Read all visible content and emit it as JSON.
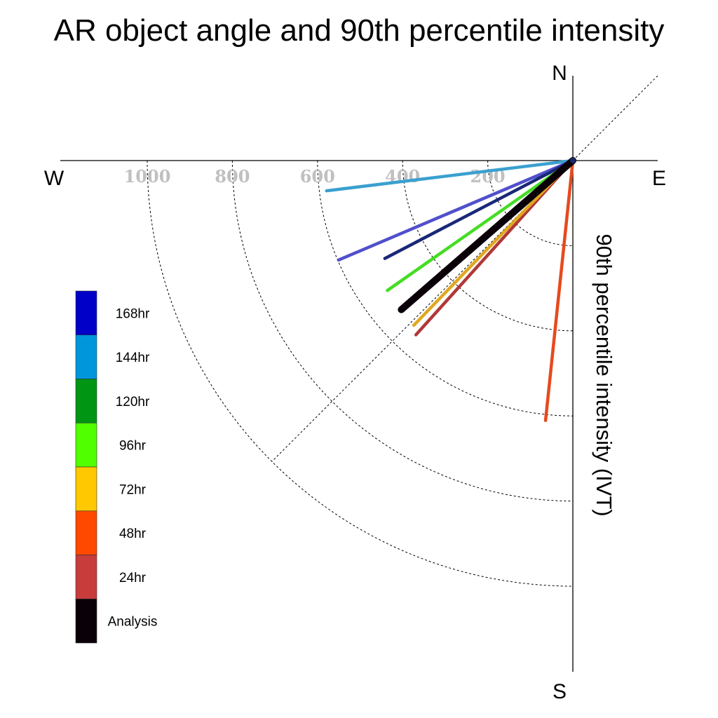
{
  "chart_data": {
    "type": "polar-quadrant-lines",
    "title": "AR object angle and 90th percentile intensity",
    "ylabel": "90th percentile intensity (IVT)",
    "compass": {
      "north": "N",
      "east": "E",
      "south": "S",
      "west": "W"
    },
    "radial_ticks": [
      {
        "label": "200",
        "value": 200
      },
      {
        "label": "400",
        "value": 400
      },
      {
        "label": "600",
        "value": 600
      },
      {
        "label": "800",
        "value": 800
      },
      {
        "label": "1000",
        "value": 1000
      }
    ],
    "radial_max": 1000,
    "grid": true,
    "legend_position": "left",
    "series": [
      {
        "name": "168hr",
        "color": "#0000c8",
        "line_color": "#5050cc",
        "direction_deg": 247,
        "intensity": 598
      },
      {
        "name": "144hr",
        "color": "#0096dc",
        "line_color": "#3aa0d0",
        "direction_deg": 263,
        "intensity": 583
      },
      {
        "name": "120hr",
        "color": "#009614",
        "line_color": "#1a2878",
        "direction_deg": 242.5,
        "intensity": 498
      },
      {
        "name": "96hr",
        "color": "#50ff00",
        "line_color": "#44dd22",
        "direction_deg": 235,
        "intensity": 532
      },
      {
        "name": "72hr",
        "color": "#ffc800",
        "line_color": "#e0a820",
        "direction_deg": 224,
        "intensity": 538
      },
      {
        "name": "48hr",
        "color": "#ff4800",
        "line_color": "#e64a1e",
        "direction_deg": 186,
        "intensity": 614
      },
      {
        "name": "24hr",
        "color": "#c83c3c",
        "line_color": "#b03838",
        "direction_deg": 222,
        "intensity": 551
      },
      {
        "name": "Analysis",
        "color": "#0a0008",
        "line_color": "#0a0008",
        "direction_deg": 229,
        "intensity": 534
      }
    ]
  }
}
